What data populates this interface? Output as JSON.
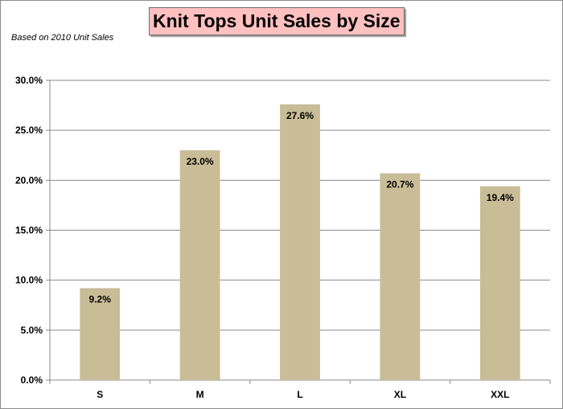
{
  "chart_data": {
    "type": "bar",
    "title": "Knit Tops Unit Sales by Size",
    "subtitle": "Based on 2010 Unit Sales",
    "xlabel": "",
    "ylabel": "",
    "categories": [
      "S",
      "M",
      "L",
      "XL",
      "XXL"
    ],
    "values": [
      9.2,
      23.0,
      27.6,
      20.7,
      19.4
    ],
    "data_labels": [
      "9.2%",
      "23.0%",
      "27.6%",
      "20.7%",
      "19.4%"
    ],
    "ylim": [
      0,
      30
    ],
    "yticks": [
      0,
      5,
      10,
      15,
      20,
      25,
      30
    ],
    "ytick_labels": [
      "0.0%",
      "5.0%",
      "10.0%",
      "15.0%",
      "20.0%",
      "25.0%",
      "30.0%"
    ],
    "grid": true,
    "legend": "none",
    "bar_color": "#c8bd96",
    "title_background": "#ffc0c0"
  }
}
